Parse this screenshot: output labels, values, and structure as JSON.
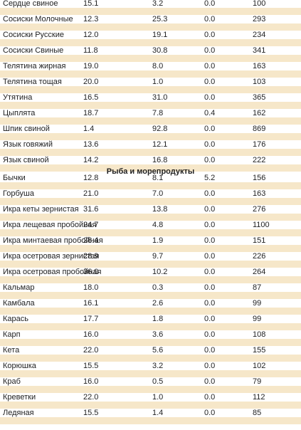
{
  "sections": [
    {
      "rows": [
        [
          "Сердце свиное",
          "15.1",
          "3.2",
          "0.0",
          "100"
        ],
        [
          "Сосиски Молочные",
          "12.3",
          "25.3",
          "0.0",
          "293"
        ],
        [
          "Сосиски Русские",
          "12.0",
          "19.1",
          "0.0",
          "234"
        ],
        [
          "Сосиски Свиные",
          "11.8",
          "30.8",
          "0.0",
          "341"
        ],
        [
          "Телятина жирная",
          "19.0",
          "8.0",
          "0.0",
          "163"
        ],
        [
          "Телятина тощая",
          "20.0",
          "1.0",
          "0.0",
          "103"
        ],
        [
          "Утятина",
          "16.5",
          "31.0",
          "0.0",
          "365"
        ],
        [
          "Цыплята",
          "18.7",
          "7.8",
          "0.4",
          "162"
        ],
        [
          "Шпик свиной",
          "1.4",
          "92.8",
          "0.0",
          "869"
        ],
        [
          "Язык говяжий",
          "13.6",
          "12.1",
          "0.0",
          "176"
        ],
        [
          "Язык свиной",
          "14.2",
          "16.8",
          "0.0",
          "222"
        ]
      ]
    },
    {
      "title": "Рыба и морепродукты",
      "rows": [
        [
          "Бычки",
          "12.8",
          "8.1",
          "5.2",
          "156"
        ],
        [
          "Горбуша",
          "21.0",
          "7.0",
          "0.0",
          "163"
        ],
        [
          "Икра кеты зернистая",
          "31.6",
          "13.8",
          "0.0",
          "276"
        ],
        [
          "Икра лещевая пробойная",
          "24.7",
          "4.8",
          "0.0",
          "1100"
        ],
        [
          "Икра минтаевая пробойная",
          "28.4",
          "1.9",
          "0.0",
          "151"
        ],
        [
          "Икра осетровая зернистая",
          "28.9",
          "9.7",
          "0.0",
          "226"
        ],
        [
          "Икра осетровая пробойная",
          "36.0",
          "10.2",
          "0.0",
          "264"
        ],
        [
          "Кальмар",
          "18.0",
          "0.3",
          "0.0",
          "87"
        ],
        [
          "Камбала",
          "16.1",
          "2.6",
          "0.0",
          "99"
        ],
        [
          "Карась",
          "17.7",
          "1.8",
          "0.0",
          "99"
        ],
        [
          "Карп",
          "16.0",
          "3.6",
          "0.0",
          "108"
        ],
        [
          "Кета",
          "22.0",
          "5.6",
          "0.0",
          "155"
        ],
        [
          "Корюшка",
          "15.5",
          "3.2",
          "0.0",
          "102"
        ],
        [
          "Краб",
          "16.0",
          "0.5",
          "0.0",
          "79"
        ],
        [
          "Креветки",
          "22.0",
          "1.0",
          "0.0",
          "112"
        ],
        [
          "Ледяная",
          "15.5",
          "1.4",
          "0.0",
          "85"
        ]
      ]
    }
  ]
}
